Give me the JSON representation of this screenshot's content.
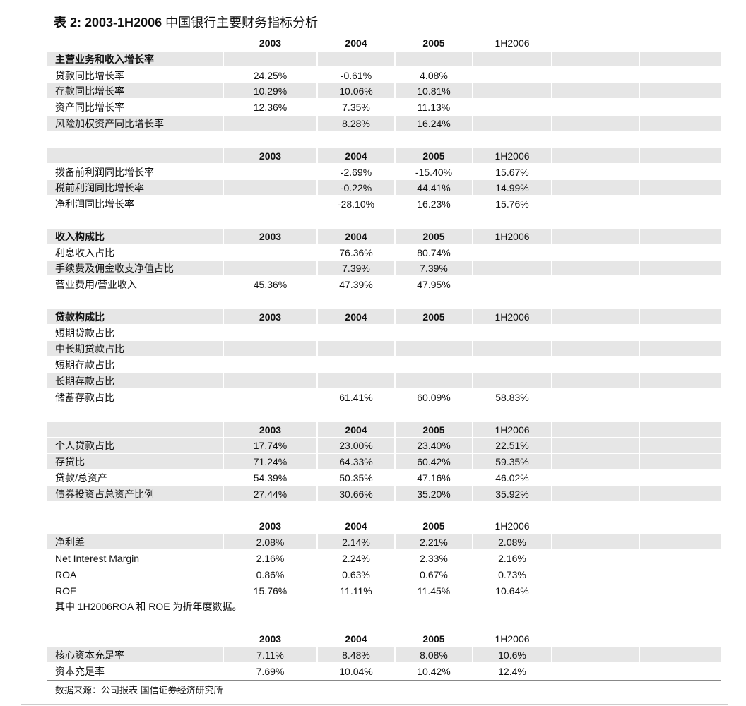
{
  "title": {
    "prefix": "表 2: 2003-1H2006",
    "cn": "中国银行主要财务指标分析"
  },
  "rows": [
    {
      "type": "header",
      "cells": [
        "",
        "2003",
        "2004",
        "2005",
        "1H2006"
      ],
      "shaded": false
    },
    {
      "type": "row",
      "cells": [
        "主营业务和收入增长率",
        "",
        "",
        "",
        ""
      ],
      "shaded": true,
      "bold": true
    },
    {
      "type": "row",
      "cells": [
        "贷款同比增长率",
        "24.25%",
        "-0.61%",
        "4.08%",
        ""
      ],
      "shaded": false
    },
    {
      "type": "row",
      "cells": [
        "存款同比增长率",
        "10.29%",
        "10.06%",
        "10.81%",
        ""
      ],
      "shaded": true
    },
    {
      "type": "row",
      "cells": [
        "资产同比增长率",
        "12.36%",
        "7.35%",
        "11.13%",
        ""
      ],
      "shaded": false
    },
    {
      "type": "row",
      "cells": [
        "风险加权资产同比增长率",
        "",
        "8.28%",
        "16.24%",
        ""
      ],
      "shaded": true
    },
    {
      "type": "spacer"
    },
    {
      "type": "header",
      "cells": [
        "",
        "2003",
        "2004",
        "2005",
        "1H2006"
      ],
      "shaded": true
    },
    {
      "type": "row",
      "cells": [
        "拨备前利润同比增长率",
        "",
        "-2.69%",
        "-15.40%",
        "15.67%"
      ],
      "shaded": false
    },
    {
      "type": "row",
      "cells": [
        "税前利润同比增长率",
        "",
        "-0.22%",
        "44.41%",
        "14.99%"
      ],
      "shaded": true
    },
    {
      "type": "row",
      "cells": [
        "净利润同比增长率",
        "",
        "-28.10%",
        "16.23%",
        "15.76%"
      ],
      "shaded": false
    },
    {
      "type": "spacer"
    },
    {
      "type": "header",
      "cells": [
        "收入构成比",
        "2003",
        "2004",
        "2005",
        "1H2006"
      ],
      "shaded": true
    },
    {
      "type": "row",
      "cells": [
        "利息收入占比",
        "",
        "76.36%",
        "80.74%",
        ""
      ],
      "shaded": false
    },
    {
      "type": "row",
      "cells": [
        "手续费及佣金收支净值占比",
        "",
        "7.39%",
        "7.39%",
        ""
      ],
      "shaded": true
    },
    {
      "type": "row",
      "cells": [
        "营业费用/营业收入",
        "45.36%",
        "47.39%",
        "47.95%",
        ""
      ],
      "shaded": false
    },
    {
      "type": "spacer"
    },
    {
      "type": "header",
      "cells": [
        "贷款构成比",
        "2003",
        "2004",
        "2005",
        "1H2006"
      ],
      "shaded": true
    },
    {
      "type": "row",
      "cells": [
        "短期贷款占比",
        "",
        "",
        "",
        ""
      ],
      "shaded": false
    },
    {
      "type": "row",
      "cells": [
        "中长期贷款占比",
        "",
        "",
        "",
        ""
      ],
      "shaded": true
    },
    {
      "type": "row",
      "cells": [
        "短期存款占比",
        "",
        "",
        "",
        ""
      ],
      "shaded": false
    },
    {
      "type": "row",
      "cells": [
        "长期存款占比",
        "",
        "",
        "",
        ""
      ],
      "shaded": true
    },
    {
      "type": "row",
      "cells": [
        "储蓄存款占比",
        "",
        "61.41%",
        "60.09%",
        "58.83%"
      ],
      "shaded": false
    },
    {
      "type": "spacer"
    },
    {
      "type": "header",
      "cells": [
        "",
        "2003",
        "2004",
        "2005",
        "1H2006"
      ],
      "shaded": true
    },
    {
      "type": "row",
      "cells": [
        "个人贷款占比",
        "17.74%",
        "23.00%",
        "23.40%",
        "22.51%"
      ],
      "shaded": true
    },
    {
      "type": "row",
      "cells": [
        "存贷比",
        "71.24%",
        "64.33%",
        "60.42%",
        "59.35%"
      ],
      "shaded": true
    },
    {
      "type": "row",
      "cells": [
        "贷款/总资产",
        "54.39%",
        "50.35%",
        "47.16%",
        "46.02%"
      ],
      "shaded": false
    },
    {
      "type": "row",
      "cells": [
        "债券投资占总资产比例",
        "27.44%",
        "30.66%",
        "35.20%",
        "35.92%"
      ],
      "shaded": true
    },
    {
      "type": "spacer"
    },
    {
      "type": "header",
      "cells": [
        "",
        "2003",
        "2004",
        "2005",
        "1H2006"
      ],
      "shaded": false
    },
    {
      "type": "row",
      "cells": [
        "净利差",
        "2.08%",
        "2.14%",
        "2.21%",
        "2.08%"
      ],
      "shaded": true
    },
    {
      "type": "row",
      "cells": [
        "Net Interest Margin",
        "2.16%",
        "2.24%",
        "2.33%",
        "2.16%"
      ],
      "shaded": false
    },
    {
      "type": "row",
      "cells": [
        "ROA",
        "0.86%",
        "0.63%",
        "0.67%",
        "0.73%"
      ],
      "shaded": false
    },
    {
      "type": "row",
      "cells": [
        "ROE",
        "15.76%",
        "11.11%",
        "11.45%",
        "10.64%"
      ],
      "shaded": false
    },
    {
      "type": "note",
      "cells": [
        "其中 1H2006ROA 和 ROE 为折年度数据。"
      ]
    },
    {
      "type": "spacer"
    },
    {
      "type": "header",
      "cells": [
        "",
        "2003",
        "2004",
        "2005",
        "1H2006"
      ],
      "shaded": false
    },
    {
      "type": "row",
      "cells": [
        "核心资本充足率",
        "7.11%",
        "8.48%",
        "8.08%",
        "10.6%"
      ],
      "shaded": true
    },
    {
      "type": "row",
      "cells": [
        "资本充足率",
        "7.69%",
        "10.04%",
        "10.42%",
        "12.4%"
      ],
      "shaded": false
    }
  ],
  "source": "数据来源：公司报表 国信证券经济研究所"
}
